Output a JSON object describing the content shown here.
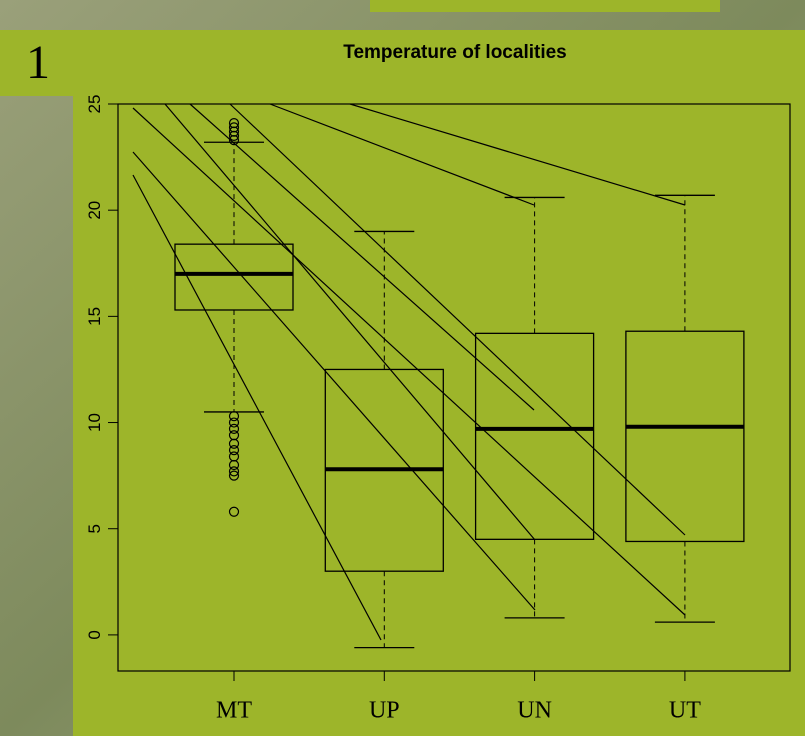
{
  "panel_label": "1",
  "chart_data": {
    "type": "box",
    "title": "Temperature of localities",
    "categories": [
      "MT",
      "UP",
      "UN",
      "UT"
    ],
    "boxes": [
      {
        "low": 10.5,
        "q1": 15.3,
        "median": 17.0,
        "q3": 18.4,
        "high": 23.2,
        "outliers": [
          23.3,
          23.5,
          23.7,
          23.9,
          24.1,
          10.3,
          10.0,
          9.7,
          9.4,
          9.0,
          8.7,
          8.4,
          8.0,
          7.7,
          7.5,
          5.8
        ]
      },
      {
        "low": -0.6,
        "q1": 3.0,
        "median": 7.8,
        "q3": 12.5,
        "high": 19.0,
        "outliers": []
      },
      {
        "low": 0.8,
        "q1": 4.5,
        "median": 9.7,
        "q3": 14.2,
        "high": 20.6,
        "outliers": []
      },
      {
        "low": 0.6,
        "q1": 4.4,
        "median": 9.8,
        "q3": 14.3,
        "high": 20.7,
        "outliers": []
      }
    ],
    "ylim": [
      -1.7,
      25
    ],
    "yticks": [
      0,
      5,
      10,
      15,
      20,
      25
    ],
    "color": "#000000"
  }
}
